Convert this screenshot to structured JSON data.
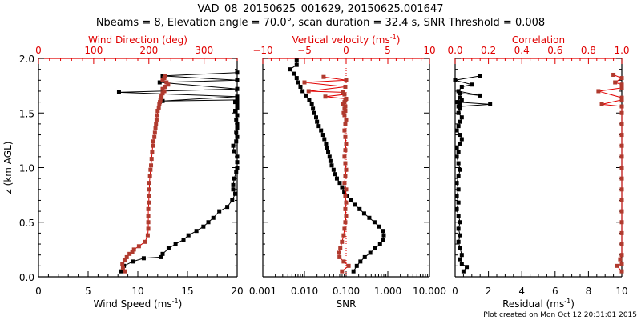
{
  "title_line1": "VAD_08_20150625_001629, 20150625.001647",
  "title_line2": "Nbeams = 8, Elevation angle = 70.0°, scan duration = 32.4 s, SNR Threshold = 0.008",
  "footer": "Plot created on Mon Oct 12 20:31:01 2015",
  "colors": {
    "primary": "#000000",
    "secondary": "#e00000",
    "secondary_marker": "#b03a2e"
  },
  "chart_data": [
    {
      "type": "line",
      "panel": "left",
      "ylabel": "z (km AGL)",
      "ylim": [
        0,
        2.0
      ],
      "yticks": [
        "0.0",
        "0.5",
        "1.0",
        "1.5",
        "2.0"
      ],
      "xlabel": "Wind Speed (ms⁻¹)",
      "xlim": [
        0,
        20
      ],
      "xticks": [
        "0",
        "5",
        "10",
        "15",
        "20"
      ],
      "top_xlabel": "Wind Direction (deg)",
      "top_xlim": [
        0,
        360
      ],
      "top_xticks": [
        "0",
        "100",
        "200",
        "300"
      ],
      "series": [
        {
          "name": "Wind Speed",
          "axis": "bottom",
          "color": "#000000",
          "x": [
            8.3,
            8.6,
            9.5,
            10.6,
            12.3,
            12.5,
            13.1,
            13.8,
            14.6,
            15.1,
            15.9,
            16.6,
            17.1,
            17.6,
            18.2,
            19.0,
            19.5,
            19.8,
            19.6,
            19.6,
            19.7,
            19.9,
            20.0,
            20.0,
            20.0,
            19.7,
            19.6,
            19.9,
            20.0,
            19.9,
            20.0,
            20.0,
            19.9,
            20.0,
            19.8,
            20.0,
            20.0,
            19.8,
            20.0,
            12.5,
            20.0,
            8.1,
            20.0,
            12.2,
            20.0,
            12.5,
            20.0
          ],
          "z": [
            0.05,
            0.1,
            0.14,
            0.17,
            0.18,
            0.21,
            0.26,
            0.3,
            0.34,
            0.38,
            0.42,
            0.46,
            0.5,
            0.54,
            0.6,
            0.64,
            0.7,
            0.76,
            0.8,
            0.84,
            0.9,
            0.96,
            1.0,
            1.05,
            1.1,
            1.15,
            1.2,
            1.24,
            1.28,
            1.32,
            1.36,
            1.4,
            1.44,
            1.48,
            1.52,
            1.55,
            1.58,
            1.6,
            1.62,
            1.61,
            1.65,
            1.69,
            1.72,
            1.78,
            1.8,
            1.84,
            1.87
          ]
        },
        {
          "name": "Wind Direction",
          "axis": "top",
          "color": "#b03a2e",
          "x": [
            157,
            153,
            152,
            156,
            160,
            165,
            170,
            173,
            182,
            193,
            198,
            199,
            199,
            199,
            199,
            200,
            200,
            201,
            201,
            202,
            203,
            204,
            205,
            206,
            207,
            208,
            210,
            211,
            212,
            213,
            214,
            215,
            216,
            218,
            219,
            220,
            221,
            222,
            223,
            225,
            228,
            225,
            230,
            235,
            232,
            225,
            228,
            230
          ],
          "z": [
            0.05,
            0.08,
            0.12,
            0.15,
            0.18,
            0.21,
            0.23,
            0.25,
            0.28,
            0.32,
            0.38,
            0.44,
            0.5,
            0.56,
            0.62,
            0.68,
            0.74,
            0.8,
            0.86,
            0.92,
            0.98,
            1.02,
            1.08,
            1.14,
            1.2,
            1.24,
            1.28,
            1.32,
            1.36,
            1.4,
            1.44,
            1.48,
            1.52,
            1.55,
            1.58,
            1.6,
            1.62,
            1.64,
            1.66,
            1.68,
            1.7,
            1.72,
            1.74,
            1.76,
            1.78,
            1.8,
            1.82,
            1.84
          ]
        }
      ]
    },
    {
      "type": "line",
      "panel": "middle",
      "xlabel": "SNR",
      "xscale": "log",
      "xlim": [
        0.001,
        10
      ],
      "xticks": [
        "0.001",
        "0.010",
        "0.100",
        "1.000",
        "10.000"
      ],
      "top_xlabel": "Vertical velocity (ms⁻¹)",
      "top_xlim": [
        -10,
        10
      ],
      "top_xticks": [
        "-10",
        "-5",
        "0",
        "5",
        "10"
      ],
      "reference_line": {
        "axis": "bottom",
        "value": 0.1,
        "style": "dotted",
        "color": "#e00000"
      },
      "series": [
        {
          "name": "SNR",
          "axis": "bottom",
          "color": "#000000",
          "x": [
            0.15,
            0.18,
            0.22,
            0.28,
            0.38,
            0.5,
            0.65,
            0.75,
            0.8,
            0.75,
            0.62,
            0.48,
            0.36,
            0.27,
            0.21,
            0.16,
            0.13,
            0.105,
            0.09,
            0.08,
            0.07,
            0.06,
            0.055,
            0.05,
            0.045,
            0.042,
            0.04,
            0.037,
            0.035,
            0.033,
            0.03,
            0.028,
            0.025,
            0.022,
            0.02,
            0.019,
            0.017,
            0.016,
            0.015,
            0.013,
            0.011,
            0.009,
            0.008,
            0.007,
            0.0065,
            0.0055,
            0.0045,
            0.0065,
            0.0065
          ],
          "z": [
            0.05,
            0.1,
            0.14,
            0.18,
            0.22,
            0.26,
            0.3,
            0.34,
            0.38,
            0.42,
            0.46,
            0.5,
            0.54,
            0.58,
            0.62,
            0.66,
            0.7,
            0.74,
            0.78,
            0.82,
            0.86,
            0.9,
            0.94,
            0.98,
            1.02,
            1.06,
            1.1,
            1.14,
            1.18,
            1.22,
            1.26,
            1.3,
            1.34,
            1.38,
            1.42,
            1.46,
            1.5,
            1.54,
            1.58,
            1.62,
            1.66,
            1.7,
            1.74,
            1.78,
            1.82,
            1.86,
            1.9,
            1.94,
            1.98
          ]
        },
        {
          "name": "Vertical velocity",
          "axis": "top",
          "color": "#b03a2e",
          "x": [
            -0.5,
            0.3,
            -0.3,
            -0.8,
            -0.9,
            -0.7,
            -0.5,
            -0.3,
            -0.2,
            -0.1,
            0.0,
            -0.1,
            0.0,
            -0.1,
            0.0,
            -0.2,
            -0.1,
            0.0,
            -0.1,
            -0.2,
            -0.1,
            0.0,
            -0.1,
            -0.2,
            -0.1,
            0.0,
            -0.2,
            -0.3,
            -0.1,
            -0.2,
            -0.1,
            -0.4,
            -0.2,
            -0.1,
            0.0,
            -2.5,
            -0.2,
            -0.4,
            -4.5,
            -0.1,
            -5.0,
            0.0,
            -2.7
          ],
          "z": [
            0.05,
            0.1,
            0.14,
            0.18,
            0.22,
            0.26,
            0.32,
            0.38,
            0.44,
            0.5,
            0.56,
            0.62,
            0.68,
            0.74,
            0.8,
            0.86,
            0.92,
            0.98,
            1.04,
            1.1,
            1.16,
            1.22,
            1.28,
            1.34,
            1.4,
            1.44,
            1.48,
            1.5,
            1.52,
            1.54,
            1.56,
            1.58,
            1.6,
            1.62,
            1.63,
            1.65,
            1.67,
            1.69,
            1.7,
            1.74,
            1.78,
            1.8,
            1.83
          ]
        }
      ]
    },
    {
      "type": "line",
      "panel": "right",
      "xlabel": "Residual (ms⁻¹)",
      "xlim": [
        0,
        10
      ],
      "xticks": [
        "0",
        "2",
        "4",
        "6",
        "8",
        "10"
      ],
      "top_xlabel": "Correlation",
      "top_xlim": [
        0,
        1.0
      ],
      "top_xticks": [
        "0.0",
        "0.2",
        "0.4",
        "0.6",
        "0.8",
        "1.0"
      ],
      "series": [
        {
          "name": "Residual",
          "axis": "bottom",
          "color": "#000000",
          "x": [
            0.5,
            0.7,
            0.4,
            0.3,
            0.4,
            0.3,
            0.2,
            0.3,
            0.2,
            0.3,
            0.2,
            0.1,
            0.2,
            0.1,
            0.2,
            0.1,
            0.2,
            0.3,
            0.2,
            0.1,
            0.2,
            0.1,
            0.3,
            0.4,
            0.3,
            0.1,
            0.2,
            0.3,
            0.4,
            0.2,
            0.3,
            0.2,
            0.3,
            0.2,
            0.4,
            0.3,
            2.1,
            0.1,
            0.3,
            0.3,
            1.5,
            0.2,
            0.4,
            1.0,
            0.0,
            1.5
          ],
          "z": [
            0.05,
            0.09,
            0.12,
            0.16,
            0.2,
            0.26,
            0.32,
            0.38,
            0.44,
            0.5,
            0.56,
            0.62,
            0.68,
            0.74,
            0.8,
            0.86,
            0.92,
            0.98,
            1.04,
            1.1,
            1.14,
            1.18,
            1.22,
            1.26,
            1.3,
            1.34,
            1.38,
            1.42,
            1.46,
            1.5,
            1.54,
            1.56,
            1.58,
            1.6,
            1.62,
            1.56,
            1.58,
            1.6,
            1.64,
            1.68,
            1.66,
            1.7,
            1.74,
            1.76,
            1.8,
            1.84
          ]
        },
        {
          "name": "Correlation",
          "axis": "top",
          "color": "#b03a2e",
          "x": [
            1.0,
            0.97,
            1.0,
            0.99,
            1.0,
            1.0,
            1.0,
            1.0,
            1.0,
            1.0,
            1.0,
            1.0,
            1.0,
            1.0,
            1.0,
            1.0,
            1.0,
            1.0,
            1.0,
            0.88,
            1.0,
            1.0,
            0.86,
            1.0,
            1.0,
            0.96,
            1.0,
            0.95
          ],
          "z": [
            0.05,
            0.1,
            0.12,
            0.16,
            0.2,
            0.3,
            0.4,
            0.5,
            0.6,
            0.7,
            0.8,
            0.9,
            1.0,
            1.1,
            1.2,
            1.3,
            1.4,
            1.5,
            1.56,
            1.58,
            1.62,
            1.64,
            1.7,
            1.73,
            1.76,
            1.78,
            1.82,
            1.85
          ]
        }
      ]
    }
  ]
}
